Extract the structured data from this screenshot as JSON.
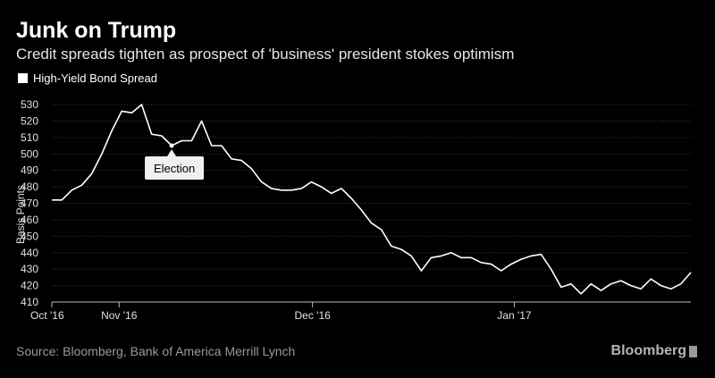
{
  "chart_data": {
    "type": "line",
    "title": "Junk on Trump",
    "subtitle": "Credit spreads tighten as prospect of 'business' president stokes optimism",
    "legend": "High-Yield Bond Spread",
    "ylabel": "Basis Points",
    "xlabel": "",
    "ylim": [
      410,
      530
    ],
    "yticks": [
      410,
      420,
      430,
      440,
      450,
      460,
      470,
      480,
      490,
      500,
      510,
      520,
      530
    ],
    "xlim": [
      0,
      76
    ],
    "xticks": [
      {
        "pos": 0,
        "label": "Oct '16"
      },
      {
        "pos": 8,
        "label": "Nov '16"
      },
      {
        "pos": 31,
        "label": "Dec '16"
      },
      {
        "pos": 55,
        "label": "Jan '17"
      }
    ],
    "series": [
      {
        "name": "High-Yield Bond Spread",
        "values": [
          472,
          472,
          478,
          481,
          488,
          500,
          514,
          526,
          525,
          530,
          512,
          511,
          505,
          508,
          508,
          520,
          505,
          505,
          497,
          496,
          491,
          483,
          479,
          478,
          478,
          479,
          483,
          480,
          476,
          479,
          473,
          466,
          458,
          454,
          444,
          442,
          438,
          429,
          437,
          438,
          440,
          437,
          437,
          434,
          433,
          429,
          433,
          436,
          438,
          439,
          430,
          419,
          421,
          415,
          421,
          417,
          421,
          423,
          420,
          418,
          424,
          420,
          418,
          421,
          428
        ]
      }
    ],
    "annotations": [
      {
        "label": "Election",
        "index": 12,
        "value": 505
      }
    ],
    "grid": true,
    "source": "Source: Bloomberg, Bank of America Merrill Lynch",
    "brand": "Bloomberg"
  }
}
